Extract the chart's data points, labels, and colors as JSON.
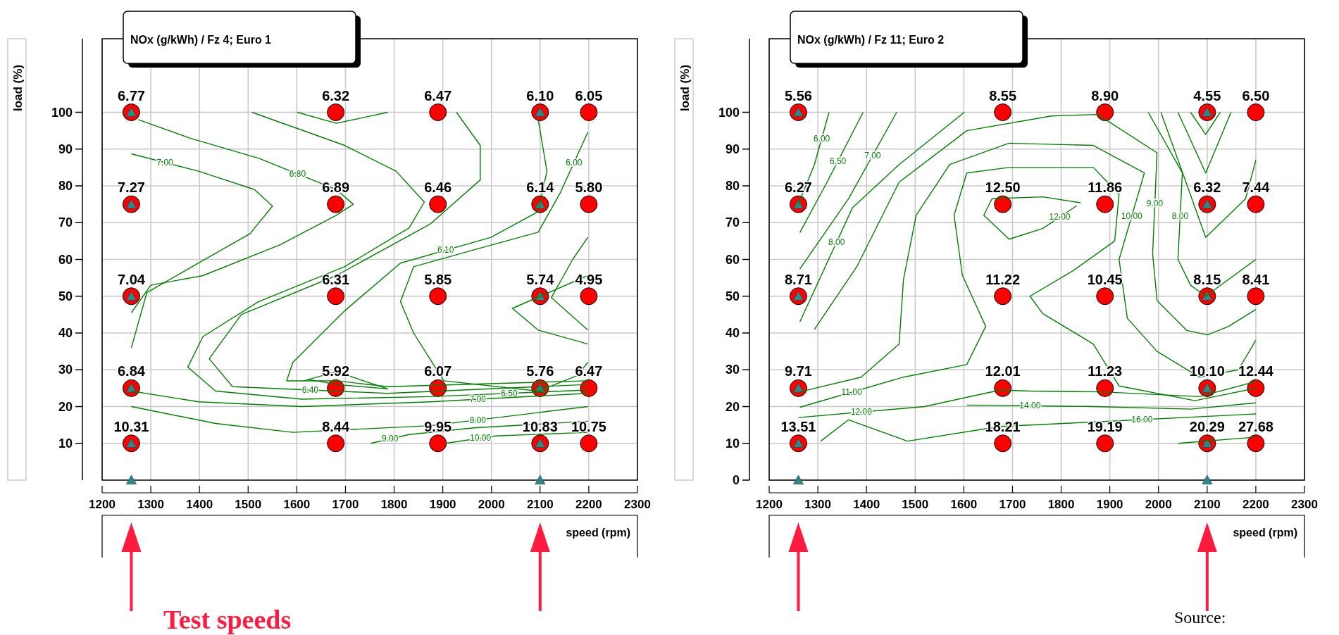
{
  "chart_data": [
    {
      "type": "scatter",
      "title": "NOx (g/kWh) / Fz 4; Euro 1",
      "xlabel": "speed (rpm)",
      "ylabel": "load (%)",
      "xlim": [
        1200,
        2300
      ],
      "xticks": [
        1200,
        1300,
        1400,
        1500,
        1600,
        1700,
        1800,
        1900,
        2000,
        2100,
        2200,
        2300
      ],
      "ylim": [
        0,
        120
      ],
      "yticks": [
        10,
        20,
        30,
        40,
        50,
        60,
        70,
        80,
        90,
        100
      ],
      "grid": true,
      "series": [
        {
          "type": "line",
          "name": "6.80",
          "color": "#008000",
          "x": [
            1274,
            1380,
            1522,
            1681,
            1716,
            1681,
            1566,
            1407,
            1300,
            1260
          ],
          "values": [
            98,
            93,
            87.5,
            79,
            75,
            72,
            64,
            55.6,
            53,
            45.5
          ]
        },
        {
          "type": "line",
          "name": "7.00",
          "color": "#008000",
          "x": [
            1260,
            1398,
            1513,
            1550,
            1504,
            1398,
            1292,
            1260
          ],
          "values": [
            88.7,
            84,
            79,
            74.5,
            67,
            59,
            51,
            36
          ]
        },
        {
          "type": "line",
          "name": "6.50",
          "color": "#008000",
          "x": [
            1508,
            1698,
            1804,
            1862,
            1831,
            1698,
            1521,
            1407,
            1376,
            1433,
            1610,
            1875,
            2198
          ],
          "values": [
            100,
            91,
            84,
            75.6,
            68.6,
            58,
            48.5,
            39,
            30.7,
            24.2,
            22,
            22.7,
            24.5
          ]
        },
        {
          "type": "line",
          "name": "6.40",
          "color": "#008000",
          "x": [
            1928,
            1977,
            1977,
            1875,
            1681,
            1486,
            1420,
            1468,
            1787,
            2198
          ],
          "values": [
            100,
            91,
            81.6,
            69.7,
            55.6,
            45,
            33,
            25.4,
            23.6,
            26
          ]
        },
        {
          "type": "line",
          "name": "6.10",
          "color": "#008000",
          "x": [
            2096,
            2114,
            2096,
            1999,
            1813,
            1698,
            1592,
            1579,
            1681,
            1787,
            2198
          ],
          "values": [
            98,
            84,
            73,
            66,
            59,
            46,
            32,
            27,
            27,
            25.4,
            27
          ]
        },
        {
          "type": "line",
          "name": "6.00",
          "color": "#008000",
          "x": [
            2198,
            2141,
            2096,
            1964,
            1840,
            1813,
            1840,
            1902,
            2096,
            2176,
            2198
          ],
          "values": [
            94.6,
            78,
            67.4,
            62.6,
            58,
            48.5,
            40,
            27,
            24.2,
            28.4,
            32
          ]
        },
        {
          "type": "line",
          "color": "#008000",
          "x": [
            2198,
            2167,
            2123,
            2198
          ],
          "values": [
            66,
            60,
            49.6,
            40.8
          ]
        },
        {
          "type": "line",
          "color": "#008000",
          "x": [
            2198,
            2043,
            2096,
            2198
          ],
          "values": [
            55.6,
            46.7,
            40.8,
            37
          ]
        },
        {
          "type": "line",
          "color": "#008000",
          "x": [
            1601,
            1681,
            1787
          ],
          "values": [
            100,
            97,
            100
          ]
        },
        {
          "type": "line",
          "color": "#008000",
          "x": [
            1615,
            1681,
            1787,
            1681,
            1622
          ],
          "values": [
            27,
            29.5,
            24.8,
            26,
            27.4
          ]
        },
        {
          "type": "line",
          "name": "7.00",
          "color": "#008000",
          "x": [
            1260,
            1398,
            1610,
            1875,
            2198
          ],
          "values": [
            24.2,
            21.3,
            20,
            21.3,
            23.6
          ]
        },
        {
          "type": "line",
          "name": "8.00",
          "color": "#008000",
          "x": [
            1260,
            1433,
            1592,
            1875,
            2198
          ],
          "values": [
            20,
            15.4,
            13,
            14.8,
            20
          ]
        },
        {
          "type": "line",
          "name": "9.00",
          "color": "#008000",
          "x": [
            1752,
            1831,
            1964,
            2198
          ],
          "values": [
            10,
            12.4,
            14.2,
            16
          ]
        },
        {
          "type": "line",
          "name": "10.00",
          "color": "#008000",
          "x": [
            1906,
            2008,
            2198
          ],
          "values": [
            10,
            12,
            13
          ]
        },
        {
          "color": "#ff0000",
          "marker": "circle",
          "x": [
            1260,
            1680,
            1890,
            2100,
            2200,
            1260,
            1680,
            1890,
            2100,
            2200,
            1260,
            1680,
            1890,
            2100,
            2200,
            1260,
            1680,
            1890,
            2100,
            2200,
            1260,
            1680,
            1890,
            2100,
            2200
          ],
          "values": [
            100,
            100,
            100,
            100,
            100,
            75,
            75,
            75,
            75,
            75,
            50,
            50,
            50,
            50,
            50,
            25,
            25,
            25,
            25,
            25,
            10,
            10,
            10,
            10,
            10
          ]
        },
        {
          "type": "scatter",
          "color": "#2a8a8a",
          "marker": "triangle",
          "x": [
            1260,
            1260,
            1260,
            1260,
            1260,
            2100,
            2100,
            2100,
            2100,
            2100,
            1260,
            2100
          ],
          "values": [
            100,
            75,
            50,
            25,
            10,
            100,
            75,
            50,
            25,
            10,
            0,
            0
          ]
        }
      ],
      "annotations": [
        {
          "text": "6.77",
          "x": 1260,
          "y": 100
        },
        {
          "text": "6.32",
          "x": 1680,
          "y": 100
        },
        {
          "text": "6.47",
          "x": 1890,
          "y": 100
        },
        {
          "text": "6.10",
          "x": 2100,
          "y": 100
        },
        {
          "text": "6.05",
          "x": 2200,
          "y": 100
        },
        {
          "text": "7.27",
          "x": 1260,
          "y": 75
        },
        {
          "text": "6.89",
          "x": 1680,
          "y": 75
        },
        {
          "text": "6.46",
          "x": 1890,
          "y": 75
        },
        {
          "text": "6.14",
          "x": 2100,
          "y": 75
        },
        {
          "text": "5.80",
          "x": 2200,
          "y": 75
        },
        {
          "text": "7.04",
          "x": 1260,
          "y": 50
        },
        {
          "text": "6.31",
          "x": 1680,
          "y": 50
        },
        {
          "text": "5.85",
          "x": 1890,
          "y": 50
        },
        {
          "text": "5.74",
          "x": 2100,
          "y": 50
        },
        {
          "text": "4.95",
          "x": 2200,
          "y": 50
        },
        {
          "text": "6.84",
          "x": 1260,
          "y": 25
        },
        {
          "text": "5.92",
          "x": 1680,
          "y": 25
        },
        {
          "text": "6.07",
          "x": 1890,
          "y": 25
        },
        {
          "text": "5.76",
          "x": 2100,
          "y": 25
        },
        {
          "text": "6.47",
          "x": 2200,
          "y": 25
        },
        {
          "text": "10.31",
          "x": 1260,
          "y": 10
        },
        {
          "text": "8.44",
          "x": 1680,
          "y": 10
        },
        {
          "text": "9.95",
          "x": 1890,
          "y": 10
        },
        {
          "text": "10.83",
          "x": 2100,
          "y": 10
        },
        {
          "text": "10.75",
          "x": 2200,
          "y": 10
        },
        "Test speeds"
      ]
    },
    {
      "type": "scatter",
      "title": "NOx (g/kWh) / Fz 11; Euro 2",
      "xlabel": "speed (rpm)",
      "ylabel": "load (%)",
      "xlim": [
        1200,
        2300
      ],
      "xticks": [
        1200,
        1300,
        1400,
        1500,
        1600,
        1700,
        1800,
        1900,
        2000,
        2100,
        2200,
        2300
      ],
      "ylim": [
        0,
        120
      ],
      "yticks": [
        0,
        10,
        20,
        30,
        40,
        50,
        60,
        70,
        80,
        90,
        100
      ],
      "grid": true,
      "series": [
        {
          "type": "line",
          "name": "6.00",
          "color": "#008000",
          "x": [
            1260,
            1293,
            1323
          ],
          "values": [
            75,
            85.8,
            100
          ]
        },
        {
          "type": "line",
          "name": "6.50",
          "color": "#008000",
          "x": [
            1263,
            1319,
            1393
          ],
          "values": [
            67.3,
            81,
            100
          ]
        },
        {
          "type": "line",
          "name": "7.00",
          "color": "#008000",
          "x": [
            1263,
            1363,
            1462
          ],
          "values": [
            57.4,
            76.5,
            100
          ]
        },
        {
          "type": "line",
          "name": "8.00",
          "color": "#008000",
          "x": [
            1263,
            1371,
            1467,
            1601
          ],
          "values": [
            43,
            74,
            85.8,
            100
          ]
        },
        {
          "type": "line",
          "name": "9.00",
          "color": "#008000",
          "x": [
            1293,
            1380,
            1467,
            1606,
            1780,
            1875,
            1997,
            1988,
            1997,
            2058,
            2101,
            2144,
            2200
          ],
          "values": [
            41,
            58,
            81,
            95,
            99,
            99.4,
            89,
            61.5,
            48.8,
            40.7,
            39.5,
            41.8,
            46.4
          ]
        },
        {
          "type": "line",
          "name": "10.00",
          "color": "#008000",
          "x": [
            1263,
            1389,
            1467,
            1476,
            1502,
            1571,
            1693,
            1866,
            1971,
            1919,
            1936,
            1997,
            2084,
            2164,
            2200
          ],
          "values": [
            24,
            28,
            37,
            54.5,
            72,
            85.8,
            91.6,
            91,
            83.5,
            60,
            44,
            35,
            28,
            30,
            38
          ]
        },
        {
          "type": "line",
          "name": "11.00",
          "color": "#008000",
          "x": [
            1263,
            1476,
            1606,
            1645,
            1597,
            1580,
            1606,
            1693,
            1866,
            1919,
            1910,
            1823,
            1736,
            1762,
            1866,
            1919,
            2075,
            2200
          ],
          "values": [
            19.8,
            28,
            31.4,
            41.8,
            55.7,
            72,
            83.5,
            85,
            85,
            77.7,
            65,
            56.8,
            50,
            45.3,
            37,
            25.6,
            21.6,
            25
          ]
        },
        {
          "type": "line",
          "name": "12.00",
          "color": "#008000",
          "x": [
            1840,
            1762,
            1658,
            1641,
            1693,
            1762,
            1832
          ],
          "values": [
            75.4,
            77,
            76.5,
            72,
            65.5,
            68.4,
            74.6
          ]
        },
        {
          "type": "line",
          "name": "12.00",
          "color": "#008000",
          "x": [
            1260,
            1519,
            1675,
            1736,
            1884,
            2084,
            2200
          ],
          "values": [
            17,
            20,
            24.5,
            24.2,
            24,
            22.7,
            26.8
          ]
        },
        {
          "type": "line",
          "name": "14.00",
          "color": "#008000",
          "x": [
            1606,
            1866,
            2066,
            2200
          ],
          "values": [
            20.4,
            20,
            19.3,
            21
          ]
        },
        {
          "type": "line",
          "name": "16.00",
          "color": "#008000",
          "x": [
            1306,
            1363,
            1484,
            1675,
            1866,
            2200
          ],
          "values": [
            10.6,
            16.4,
            10.6,
            14.6,
            15.8,
            18
          ]
        },
        {
          "type": "line",
          "name": "8.00",
          "color": "#008000",
          "x": [
            1979,
            2049,
            2040,
            2066,
            2097,
            2200
          ],
          "values": [
            100,
            83.5,
            60,
            53,
            50,
            60
          ]
        },
        {
          "type": "line",
          "color": "#008000",
          "x": [
            2005,
            2097,
            2179,
            2200
          ],
          "values": [
            100,
            66,
            76.5,
            87
          ]
        },
        {
          "type": "line",
          "color": "#008000",
          "x": [
            2040,
            2097,
            2149
          ],
          "values": [
            100,
            83.5,
            100
          ]
        },
        {
          "type": "line",
          "color": "#008000",
          "x": [
            2066,
            2097,
            2127
          ],
          "values": [
            100,
            94,
            100
          ]
        },
        {
          "type": "line",
          "color": "#008000",
          "x": [
            2040,
            2200
          ],
          "values": [
            10,
            11.7
          ]
        },
        {
          "color": "#ff0000",
          "marker": "circle",
          "x": [
            1260,
            1680,
            1890,
            2100,
            2200,
            1260,
            1680,
            1890,
            2100,
            2200,
            1260,
            1680,
            1890,
            2100,
            2200,
            1260,
            1680,
            1890,
            2100,
            2200,
            1260,
            1680,
            1890,
            2100,
            2200
          ],
          "values": [
            100,
            100,
            100,
            100,
            100,
            75,
            75,
            75,
            75,
            75,
            50,
            50,
            50,
            50,
            50,
            25,
            25,
            25,
            25,
            25,
            10,
            10,
            10,
            10,
            10
          ]
        },
        {
          "type": "scatter",
          "color": "#2a8a8a",
          "marker": "triangle",
          "x": [
            1260,
            1260,
            1260,
            1260,
            1260,
            2100,
            2100,
            2100,
            2100,
            2100,
            1260,
            2100
          ],
          "values": [
            100,
            75,
            50,
            25,
            10,
            100,
            75,
            50,
            25,
            10,
            0,
            0
          ]
        }
      ],
      "annotations": [
        {
          "text": "5.56",
          "x": 1260,
          "y": 100
        },
        {
          "text": "8.55",
          "x": 1680,
          "y": 100
        },
        {
          "text": "8.90",
          "x": 1890,
          "y": 100
        },
        {
          "text": "4.55",
          "x": 2100,
          "y": 100
        },
        {
          "text": "6.50",
          "x": 2200,
          "y": 100
        },
        {
          "text": "6.27",
          "x": 1260,
          "y": 75
        },
        {
          "text": "12.50",
          "x": 1680,
          "y": 75
        },
        {
          "text": "11.86",
          "x": 1890,
          "y": 75
        },
        {
          "text": "6.32",
          "x": 2100,
          "y": 75
        },
        {
          "text": "7.44",
          "x": 2200,
          "y": 75
        },
        {
          "text": "8.71",
          "x": 1260,
          "y": 50
        },
        {
          "text": "11.22",
          "x": 1680,
          "y": 50
        },
        {
          "text": "10.45",
          "x": 1890,
          "y": 50
        },
        {
          "text": "8.15",
          "x": 2100,
          "y": 50
        },
        {
          "text": "8.41",
          "x": 2200,
          "y": 50
        },
        {
          "text": "9.71",
          "x": 1260,
          "y": 25
        },
        {
          "text": "12.01",
          "x": 1680,
          "y": 25
        },
        {
          "text": "11.23",
          "x": 1890,
          "y": 25
        },
        {
          "text": "10.10",
          "x": 2100,
          "y": 25
        },
        {
          "text": "12.44",
          "x": 2200,
          "y": 25
        },
        {
          "text": "13.51",
          "x": 1260,
          "y": 10
        },
        {
          "text": "18.21",
          "x": 1680,
          "y": 10
        },
        {
          "text": "19.19",
          "x": 1890,
          "y": 10
        },
        {
          "text": "20.29",
          "x": 2100,
          "y": 10
        },
        {
          "text": "27.68",
          "x": 2200,
          "y": 10
        },
        "Source:"
      ]
    }
  ]
}
